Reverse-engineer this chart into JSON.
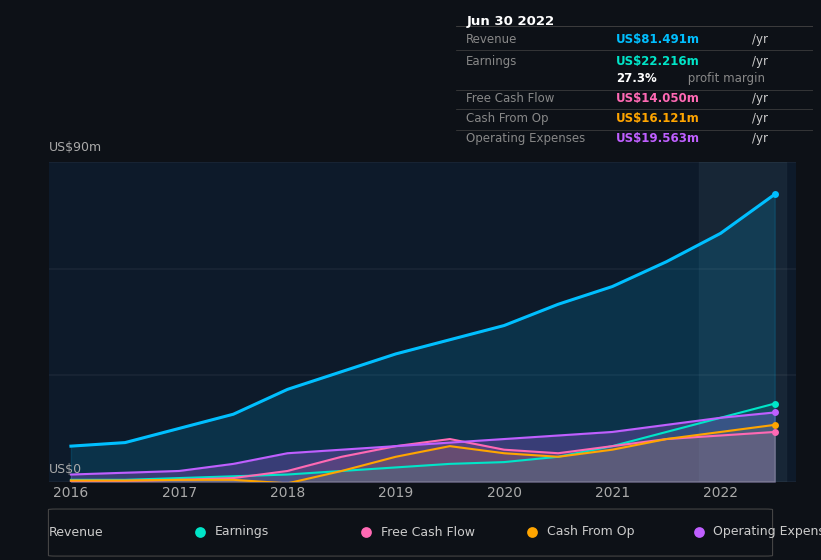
{
  "background_color": "#0d1117",
  "plot_bg_color": "#0d1a2a",
  "title_box": {
    "date": "Jun 30 2022",
    "rows": [
      {
        "label": "Revenue",
        "value": "US$81.491m",
        "unit": "/yr",
        "color": "#00bfff"
      },
      {
        "label": "Earnings",
        "value": "US$22.216m",
        "unit": "/yr",
        "color": "#00e5c8"
      },
      {
        "label": "",
        "value": "27.3%",
        "unit": " profit margin",
        "color": "#ffffff"
      },
      {
        "label": "Free Cash Flow",
        "value": "US$14.050m",
        "unit": "/yr",
        "color": "#ff69b4"
      },
      {
        "label": "Cash From Op",
        "value": "US$16.121m",
        "unit": "/yr",
        "color": "#ffa500"
      },
      {
        "label": "Operating Expenses",
        "value": "US$19.563m",
        "unit": "/yr",
        "color": "#bf5fff"
      }
    ]
  },
  "ylabel": "US$90m",
  "y0label": "US$0",
  "years": [
    2016,
    2016.5,
    2017,
    2017.5,
    2018,
    2018.5,
    2019,
    2019.5,
    2020,
    2020.5,
    2021,
    2021.5,
    2022,
    2022.5
  ],
  "revenue": [
    10,
    11,
    15,
    19,
    26,
    31,
    36,
    40,
    44,
    50,
    55,
    62,
    70,
    81
  ],
  "earnings": [
    0.5,
    0.5,
    1,
    1.5,
    2,
    3,
    4,
    5,
    5.5,
    7,
    10,
    14,
    18,
    22
  ],
  "free_cf": [
    0.2,
    0.2,
    0.5,
    1,
    3,
    7,
    10,
    12,
    9,
    8,
    10,
    12,
    13,
    14
  ],
  "cash_op": [
    0.3,
    0.3,
    0.5,
    0.5,
    -0.5,
    3,
    7,
    10,
    8,
    7,
    9,
    12,
    14,
    16
  ],
  "op_expenses": [
    2,
    2.5,
    3,
    5,
    8,
    9,
    10,
    11,
    12,
    13,
    14,
    16,
    18,
    19.5
  ],
  "revenue_color": "#00bfff",
  "earnings_color": "#00e5c8",
  "free_cf_color": "#ff69b4",
  "cash_op_color": "#ffa500",
  "op_expenses_color": "#bf5fff",
  "highlight_x_start": 2021.8,
  "highlight_x_end": 2022.6,
  "xlim": [
    2015.8,
    2022.7
  ],
  "ylim": [
    0,
    90
  ],
  "xticks": [
    2016,
    2017,
    2018,
    2019,
    2020,
    2021,
    2022
  ],
  "legend_items": [
    {
      "label": "Revenue",
      "color": "#00bfff"
    },
    {
      "label": "Earnings",
      "color": "#00e5c8"
    },
    {
      "label": "Free Cash Flow",
      "color": "#ff69b4"
    },
    {
      "label": "Cash From Op",
      "color": "#ffa500"
    },
    {
      "label": "Operating Expenses",
      "color": "#bf5fff"
    }
  ]
}
